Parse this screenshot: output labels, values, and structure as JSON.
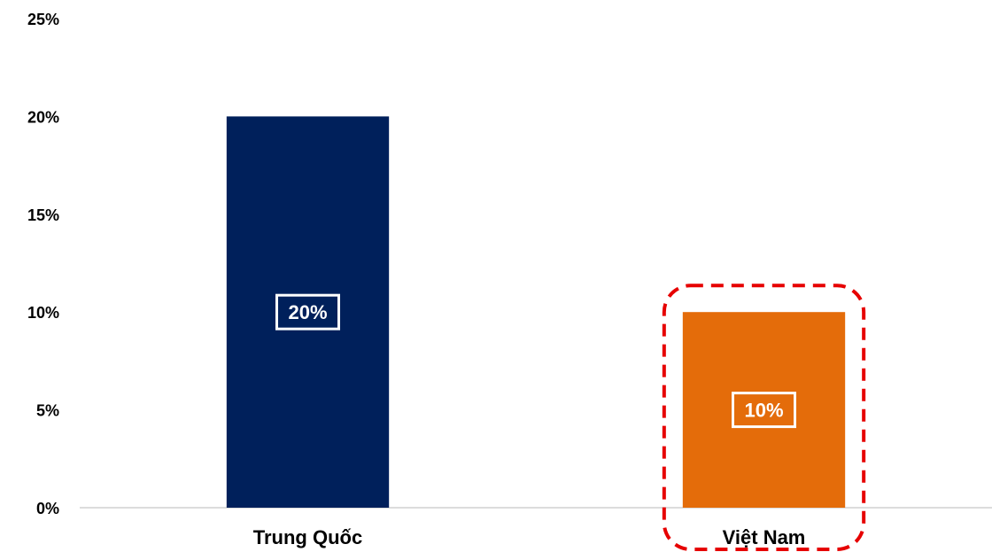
{
  "chart_data": {
    "type": "bar",
    "title": "",
    "xlabel": "",
    "ylabel": "",
    "categories": [
      "Trung Quốc",
      "Việt Nam"
    ],
    "values": [
      20,
      10
    ],
    "data_labels": [
      "20%",
      "10%"
    ],
    "bar_colors": [
      "#00205B",
      "#E46C0A"
    ],
    "ylim": [
      0,
      25
    ],
    "yticks": [
      0,
      5,
      10,
      15,
      20,
      25
    ],
    "ytick_labels": [
      "0%",
      "5%",
      "10%",
      "15%",
      "20%",
      "25%"
    ],
    "grid": false,
    "legend": "none",
    "highlight": {
      "category": "Việt Nam",
      "style": "dashed-rounded-box",
      "color": "#E60000"
    }
  }
}
